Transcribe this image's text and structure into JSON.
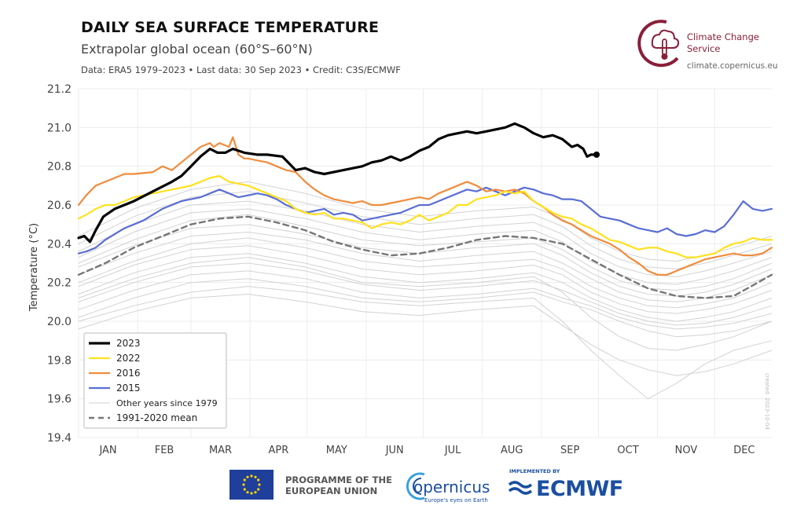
{
  "header": {
    "title": "DAILY SEA SURFACE TEMPERATURE",
    "subtitle": "Extrapolar global ocean (60°S–60°N)",
    "meta": "Data: ERA5 1979–2023 • Last data: 30 Sep 2023 • Credit: C3S/ECMWF"
  },
  "branding": {
    "c3s_name": "Climate Change Service",
    "c3s_url": "climate.copernicus.eu",
    "created": "created: 2023-10-04",
    "eu_text": "PROGRAMME OF THE EUROPEAN UNION",
    "copernicus": "opernicus",
    "copernicus_tag": "Europe's eyes on Earth",
    "ecmwf_impl": "IMPLEMENTED BY",
    "ecmwf": "ECMWF",
    "brand_color": "#8a1f3a",
    "partner_color": "#1b4fa0"
  },
  "chart_data": {
    "type": "line",
    "xlabel": "",
    "ylabel": "Temperature (°C)",
    "x_unit": "day of year",
    "xlim": [
      1,
      365
    ],
    "ylim": [
      19.4,
      21.2
    ],
    "yticks": [
      19.4,
      19.6,
      19.8,
      20.0,
      20.2,
      20.4,
      20.6,
      20.8,
      21.0,
      21.2
    ],
    "ytick_labels": [
      "19.4",
      "19.6",
      "19.8",
      "20.0",
      "20.2",
      "20.4",
      "20.6",
      "20.8",
      "21.0",
      "21.2"
    ],
    "months": [
      "JAN",
      "FEB",
      "MAR",
      "APR",
      "MAY",
      "JUN",
      "JUL",
      "AUG",
      "SEP",
      "OCT",
      "NOV",
      "DEC"
    ],
    "month_start_days": [
      1,
      32,
      60,
      91,
      121,
      152,
      182,
      213,
      244,
      274,
      305,
      335
    ],
    "grid": true,
    "legend_position": "bottom-left",
    "series": [
      {
        "name": "2023",
        "color": "#000000",
        "width": 3.2,
        "dash": "",
        "x": [
          1,
          4,
          7,
          10,
          14,
          20,
          30,
          40,
          50,
          55,
          60,
          65,
          70,
          74,
          78,
          82,
          88,
          95,
          100,
          108,
          115,
          120,
          125,
          130,
          140,
          150,
          155,
          160,
          165,
          170,
          175,
          180,
          185,
          190,
          195,
          200,
          205,
          210,
          215,
          220,
          225,
          230,
          235,
          240,
          245,
          250,
          255,
          260,
          263,
          266,
          268,
          270,
          273
        ],
        "y": [
          20.43,
          20.44,
          20.41,
          20.47,
          20.54,
          20.58,
          20.62,
          20.67,
          20.72,
          20.75,
          20.8,
          20.85,
          20.89,
          20.87,
          20.87,
          20.89,
          20.87,
          20.86,
          20.86,
          20.85,
          20.78,
          20.79,
          20.77,
          20.76,
          20.78,
          20.8,
          20.82,
          20.83,
          20.85,
          20.83,
          20.85,
          20.88,
          20.9,
          20.94,
          20.96,
          20.97,
          20.98,
          20.97,
          20.98,
          20.99,
          21.0,
          21.02,
          21.0,
          20.97,
          20.95,
          20.96,
          20.94,
          20.9,
          20.91,
          20.89,
          20.85,
          20.86,
          20.86
        ]
      },
      {
        "name": "2022",
        "color": "#ffe11e",
        "width": 2.2,
        "dash": "",
        "x": [
          1,
          5,
          10,
          15,
          20,
          25,
          30,
          40,
          50,
          60,
          65,
          70,
          75,
          80,
          85,
          90,
          95,
          100,
          105,
          110,
          115,
          120,
          125,
          130,
          135,
          140,
          145,
          150,
          155,
          160,
          165,
          170,
          175,
          180,
          185,
          190,
          195,
          200,
          205,
          210,
          215,
          220,
          225,
          230,
          235,
          240,
          245,
          250,
          255,
          260,
          265,
          270,
          275,
          280,
          285,
          290,
          295,
          300,
          305,
          310,
          315,
          320,
          325,
          330,
          335,
          340,
          345,
          350,
          355,
          360,
          365
        ],
        "y": [
          20.53,
          20.55,
          20.58,
          20.6,
          20.6,
          20.62,
          20.64,
          20.66,
          20.68,
          20.7,
          20.72,
          20.74,
          20.75,
          20.72,
          20.71,
          20.7,
          20.68,
          20.66,
          20.64,
          20.62,
          20.58,
          20.56,
          20.55,
          20.56,
          20.53,
          20.53,
          20.52,
          20.51,
          20.48,
          20.5,
          20.51,
          20.5,
          20.52,
          20.55,
          20.52,
          20.54,
          20.56,
          20.6,
          20.6,
          20.63,
          20.64,
          20.65,
          20.67,
          20.66,
          20.67,
          20.62,
          20.59,
          20.56,
          20.54,
          20.53,
          20.5,
          20.48,
          20.45,
          20.42,
          20.41,
          20.39,
          20.37,
          20.38,
          20.38,
          20.36,
          20.35,
          20.33,
          20.33,
          20.34,
          20.35,
          20.38,
          20.4,
          20.41,
          20.43,
          20.42,
          20.42
        ]
      },
      {
        "name": "2016",
        "color": "#f08c3c",
        "width": 2.2,
        "dash": "",
        "x": [
          1,
          5,
          10,
          15,
          20,
          25,
          30,
          40,
          45,
          50,
          55,
          60,
          65,
          70,
          72,
          75,
          80,
          82,
          85,
          88,
          90,
          95,
          100,
          105,
          110,
          115,
          120,
          125,
          130,
          135,
          140,
          145,
          150,
          155,
          160,
          165,
          170,
          175,
          180,
          185,
          190,
          195,
          200,
          205,
          210,
          215,
          220,
          225,
          230,
          235,
          240,
          245,
          250,
          255,
          260,
          265,
          270,
          275,
          280,
          285,
          290,
          295,
          300,
          305,
          310,
          315,
          320,
          325,
          330,
          335,
          340,
          345,
          350,
          355,
          360,
          365
        ],
        "y": [
          20.6,
          20.65,
          20.7,
          20.72,
          20.74,
          20.76,
          20.76,
          20.77,
          20.8,
          20.78,
          20.82,
          20.86,
          20.9,
          20.92,
          20.9,
          20.92,
          20.9,
          20.95,
          20.86,
          20.84,
          20.84,
          20.83,
          20.82,
          20.8,
          20.78,
          20.77,
          20.72,
          20.68,
          20.65,
          20.63,
          20.62,
          20.61,
          20.62,
          20.6,
          20.6,
          20.61,
          20.62,
          20.63,
          20.64,
          20.63,
          20.66,
          20.68,
          20.7,
          20.72,
          20.7,
          20.67,
          20.68,
          20.67,
          20.68,
          20.66,
          20.62,
          20.59,
          20.55,
          20.52,
          20.5,
          20.47,
          20.44,
          20.42,
          20.4,
          20.37,
          20.33,
          20.3,
          20.26,
          20.24,
          20.24,
          20.26,
          20.28,
          20.3,
          20.32,
          20.33,
          20.34,
          20.35,
          20.34,
          20.34,
          20.35,
          20.38
        ]
      },
      {
        "name": "2015",
        "color": "#5a6ed2",
        "width": 2.2,
        "dash": "",
        "x": [
          1,
          5,
          10,
          15,
          20,
          25,
          30,
          35,
          40,
          45,
          50,
          55,
          60,
          65,
          70,
          75,
          80,
          85,
          90,
          95,
          100,
          105,
          110,
          115,
          120,
          125,
          130,
          135,
          140,
          145,
          150,
          155,
          160,
          165,
          170,
          175,
          180,
          185,
          190,
          195,
          200,
          205,
          210,
          215,
          220,
          225,
          230,
          235,
          240,
          245,
          250,
          255,
          260,
          265,
          270,
          275,
          280,
          285,
          290,
          295,
          300,
          305,
          310,
          315,
          320,
          325,
          330,
          335,
          340,
          345,
          350,
          355,
          360,
          365
        ],
        "y": [
          20.35,
          20.36,
          20.38,
          20.42,
          20.45,
          20.48,
          20.5,
          20.52,
          20.55,
          20.58,
          20.6,
          20.62,
          20.63,
          20.64,
          20.66,
          20.68,
          20.66,
          20.64,
          20.65,
          20.66,
          20.65,
          20.63,
          20.6,
          20.58,
          20.56,
          20.57,
          20.58,
          20.55,
          20.56,
          20.55,
          20.52,
          20.53,
          20.54,
          20.55,
          20.56,
          20.58,
          20.6,
          20.6,
          20.62,
          20.64,
          20.66,
          20.68,
          20.67,
          20.69,
          20.67,
          20.65,
          20.67,
          20.69,
          20.68,
          20.66,
          20.65,
          20.63,
          20.63,
          20.62,
          20.58,
          20.54,
          20.53,
          20.52,
          20.5,
          20.48,
          20.47,
          20.46,
          20.48,
          20.45,
          20.44,
          20.45,
          20.47,
          20.46,
          20.49,
          20.55,
          20.62,
          20.58,
          20.57,
          20.58
        ]
      },
      {
        "name": "1991-2020 mean",
        "color": "#777777",
        "width": 2.4,
        "dash": "7,5",
        "x": [
          1,
          15,
          30,
          45,
          60,
          75,
          90,
          105,
          120,
          135,
          150,
          165,
          180,
          195,
          210,
          225,
          240,
          255,
          270,
          285,
          300,
          315,
          330,
          345,
          365
        ],
        "y": [
          20.24,
          20.3,
          20.38,
          20.44,
          20.5,
          20.53,
          20.54,
          20.51,
          20.47,
          20.41,
          20.37,
          20.34,
          20.35,
          20.38,
          20.42,
          20.44,
          20.43,
          20.4,
          20.32,
          20.24,
          20.17,
          20.13,
          20.12,
          20.13,
          20.24
        ]
      }
    ],
    "other_years": {
      "name": "Other years since 1979",
      "color": "#d2d2d2",
      "x": [
        1,
        30,
        60,
        90,
        120,
        150,
        180,
        210,
        240,
        255,
        270,
        285,
        300,
        315,
        330,
        345,
        365
      ],
      "years": [
        [
          20.02,
          20.12,
          20.2,
          20.22,
          20.18,
          20.12,
          20.1,
          20.12,
          20.15,
          20.1,
          20.06,
          20.0,
          19.95,
          19.92,
          19.93,
          19.95,
          20.0
        ],
        [
          20.06,
          20.16,
          20.24,
          20.26,
          20.22,
          20.15,
          20.12,
          20.14,
          20.17,
          20.12,
          20.08,
          20.02,
          19.98,
          19.96,
          19.97,
          19.99,
          20.04
        ],
        [
          20.1,
          20.2,
          20.28,
          20.3,
          20.26,
          20.19,
          20.16,
          20.18,
          20.21,
          20.16,
          20.1,
          20.04,
          20.0,
          19.98,
          19.99,
          20.02,
          20.08
        ],
        [
          20.14,
          20.25,
          20.33,
          20.35,
          20.3,
          20.23,
          20.2,
          20.22,
          20.25,
          20.2,
          20.12,
          20.06,
          20.02,
          20.0,
          20.02,
          20.05,
          20.12
        ],
        [
          20.18,
          20.29,
          20.37,
          20.39,
          20.34,
          20.27,
          20.24,
          20.26,
          20.29,
          20.24,
          20.15,
          20.09,
          20.05,
          20.04,
          20.06,
          20.09,
          20.16
        ],
        [
          20.2,
          20.31,
          20.4,
          20.43,
          20.38,
          20.31,
          20.28,
          20.3,
          20.32,
          20.27,
          20.18,
          20.12,
          20.08,
          20.07,
          20.09,
          20.12,
          20.2
        ],
        [
          20.24,
          20.35,
          20.44,
          20.46,
          20.42,
          20.35,
          20.31,
          20.34,
          20.36,
          20.3,
          20.22,
          20.15,
          20.11,
          20.1,
          20.12,
          20.16,
          20.24
        ],
        [
          20.28,
          20.39,
          20.48,
          20.5,
          20.45,
          20.38,
          20.35,
          20.38,
          20.4,
          20.34,
          20.25,
          20.18,
          20.14,
          20.13,
          20.15,
          20.19,
          20.27
        ],
        [
          20.3,
          20.42,
          20.52,
          20.55,
          20.49,
          20.42,
          20.39,
          20.41,
          20.43,
          20.37,
          20.28,
          20.21,
          20.17,
          20.16,
          20.18,
          20.22,
          20.3
        ],
        [
          20.33,
          20.46,
          20.56,
          20.58,
          20.53,
          20.46,
          20.42,
          20.45,
          20.47,
          20.41,
          20.31,
          20.24,
          20.2,
          20.19,
          20.22,
          20.26,
          20.33
        ],
        [
          20.36,
          20.5,
          20.6,
          20.62,
          20.57,
          20.5,
          20.46,
          20.49,
          20.51,
          20.45,
          20.35,
          20.28,
          20.24,
          20.23,
          20.26,
          20.3,
          20.36
        ],
        [
          20.4,
          20.54,
          20.64,
          20.67,
          20.61,
          20.54,
          20.5,
          20.53,
          20.55,
          20.49,
          20.39,
          20.32,
          20.28,
          20.27,
          20.3,
          20.34,
          20.4
        ],
        [
          20.44,
          20.58,
          20.68,
          20.72,
          20.66,
          20.58,
          20.54,
          20.57,
          20.59,
          20.53,
          20.43,
          20.36,
          20.32,
          20.31,
          20.34,
          20.38,
          20.44
        ],
        [
          20.0,
          20.08,
          20.15,
          20.18,
          20.15,
          20.1,
          20.08,
          20.1,
          20.12,
          20.0,
          19.85,
          19.72,
          19.6,
          19.68,
          19.78,
          19.85,
          19.9
        ],
        [
          19.96,
          20.05,
          20.12,
          20.14,
          20.1,
          20.05,
          20.03,
          20.06,
          20.08,
          19.98,
          19.88,
          19.8,
          19.75,
          19.72,
          19.74,
          19.78,
          19.85
        ],
        [
          20.12,
          20.22,
          20.3,
          20.33,
          20.28,
          20.2,
          20.18,
          20.2,
          20.23,
          20.15,
          20.02,
          19.92,
          19.86,
          19.85,
          19.88,
          19.92,
          20.0
        ]
      ]
    },
    "legend": [
      {
        "label": "2023",
        "color": "#000000",
        "width": 3.2,
        "dash": ""
      },
      {
        "label": "2022",
        "color": "#ffe11e",
        "width": 2.2,
        "dash": ""
      },
      {
        "label": "2016",
        "color": "#f08c3c",
        "width": 2.2,
        "dash": ""
      },
      {
        "label": "2015",
        "color": "#5a6ed2",
        "width": 2.2,
        "dash": ""
      },
      {
        "label": "Other years since 1979",
        "color": "#d2d2d2",
        "width": 1,
        "dash": ""
      },
      {
        "label": "1991-2020 mean",
        "color": "#777777",
        "width": 2.4,
        "dash": "7,5"
      }
    ]
  }
}
